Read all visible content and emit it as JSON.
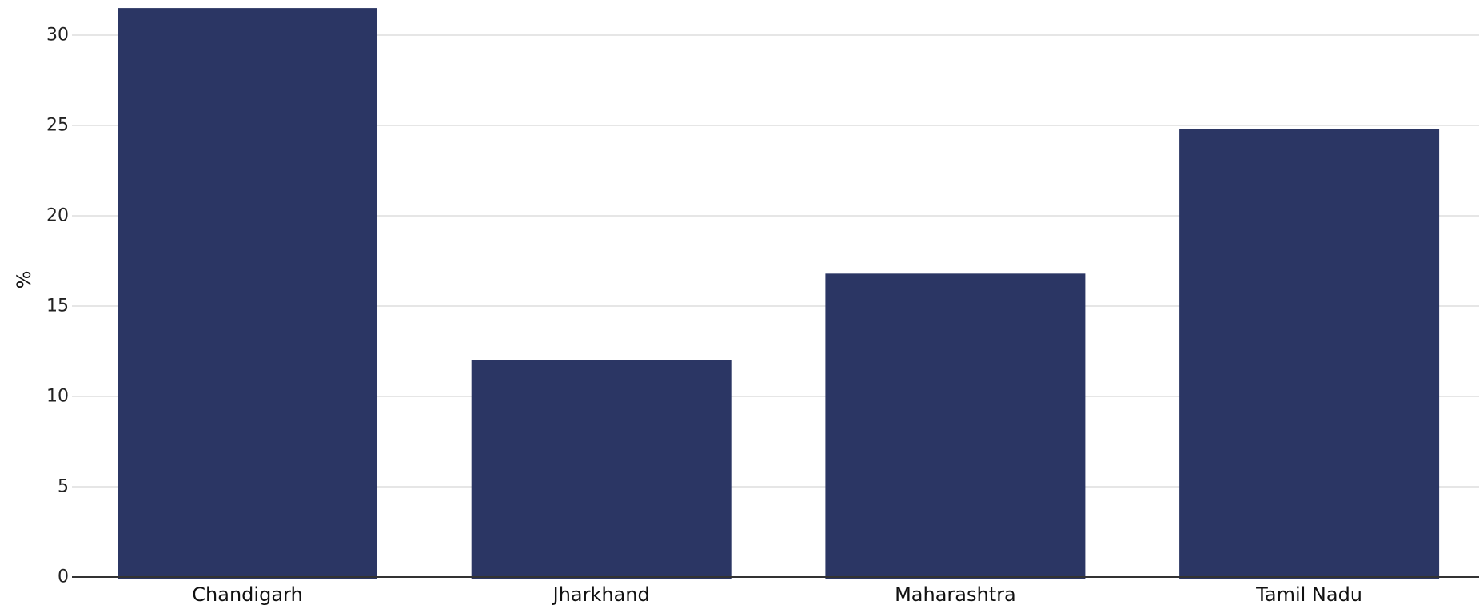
{
  "chart_data": {
    "type": "bar",
    "title": "",
    "xlabel": "",
    "ylabel": "%",
    "categories": [
      "Chandigarh",
      "Jharkhand",
      "Maharashtra",
      "Tamil Nadu"
    ],
    "values": [
      31.5,
      12.0,
      16.8,
      24.8
    ],
    "ylim": [
      0,
      31.5
    ],
    "yticks": [
      0,
      5,
      10,
      15,
      20,
      25,
      30
    ],
    "grid": true,
    "legend": "none",
    "colors": {
      "bar": "#2b3664",
      "grid": "#e6e6e6",
      "axis": "#333333"
    }
  }
}
